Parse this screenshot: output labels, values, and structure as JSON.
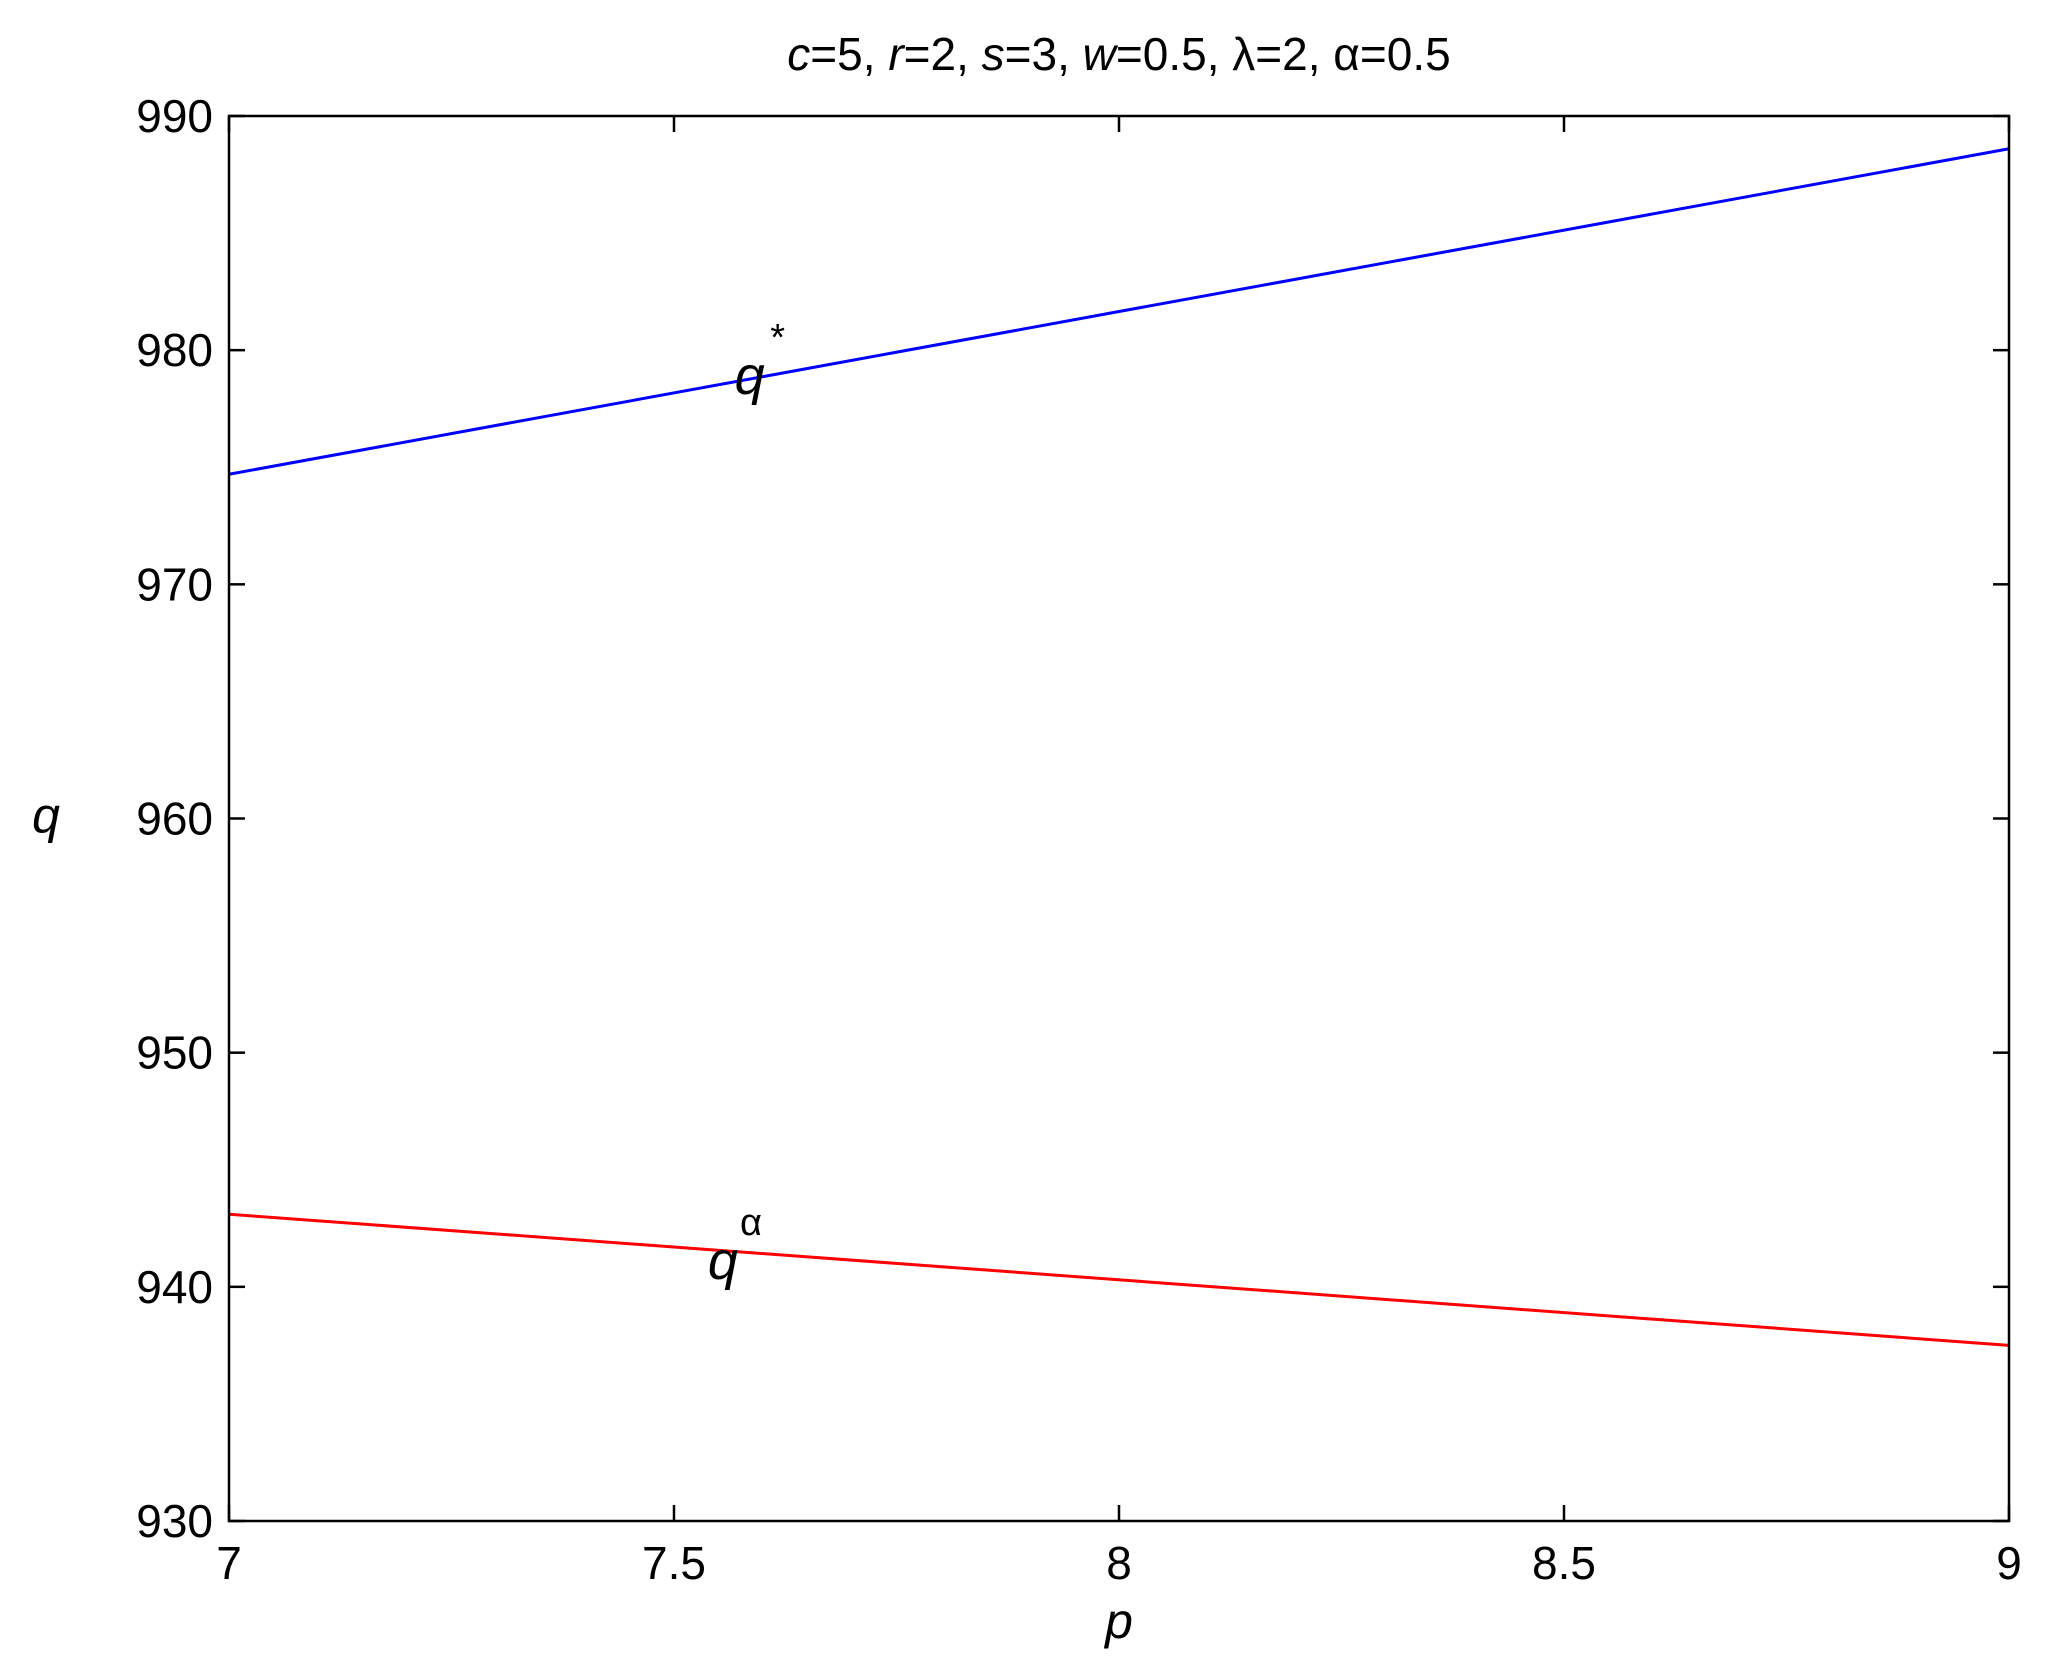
{
  "chart_data": {
    "type": "line",
    "title": {
      "segments": [
        {
          "text": "c",
          "italic": true
        },
        {
          "text": "=5, ",
          "italic": false
        },
        {
          "text": "r",
          "italic": true
        },
        {
          "text": "=2, ",
          "italic": false
        },
        {
          "text": "s",
          "italic": true
        },
        {
          "text": "=3, ",
          "italic": false
        },
        {
          "text": "w",
          "italic": true
        },
        {
          "text": "=0.5, λ=2, α=0.5",
          "italic": false
        }
      ]
    },
    "xlabel": "p",
    "ylabel": "q",
    "xlim": [
      7,
      9
    ],
    "ylim": [
      930,
      990
    ],
    "xticks": [
      7,
      7.5,
      8,
      8.5,
      9
    ],
    "xtick_labels": [
      "7",
      "7.5",
      "8",
      "8.5",
      "9"
    ],
    "yticks": [
      930,
      940,
      950,
      960,
      970,
      980,
      990
    ],
    "ytick_labels": [
      "930",
      "940",
      "950",
      "960",
      "970",
      "980",
      "990"
    ],
    "grid": false,
    "series": [
      {
        "x": [
          7,
          9
        ],
        "y": [
          974.7,
          988.6
        ],
        "color": "#0000ff"
      },
      {
        "x": [
          7,
          9
        ],
        "y": [
          943.1,
          937.5
        ],
        "color": "#ff0000"
      }
    ],
    "annotations": [
      {
        "base": "q",
        "sup": "*",
        "x": 7.585,
        "y": 978.9
      },
      {
        "base": "q",
        "sup": "α",
        "x": 7.555,
        "y": 941.1
      }
    ]
  }
}
